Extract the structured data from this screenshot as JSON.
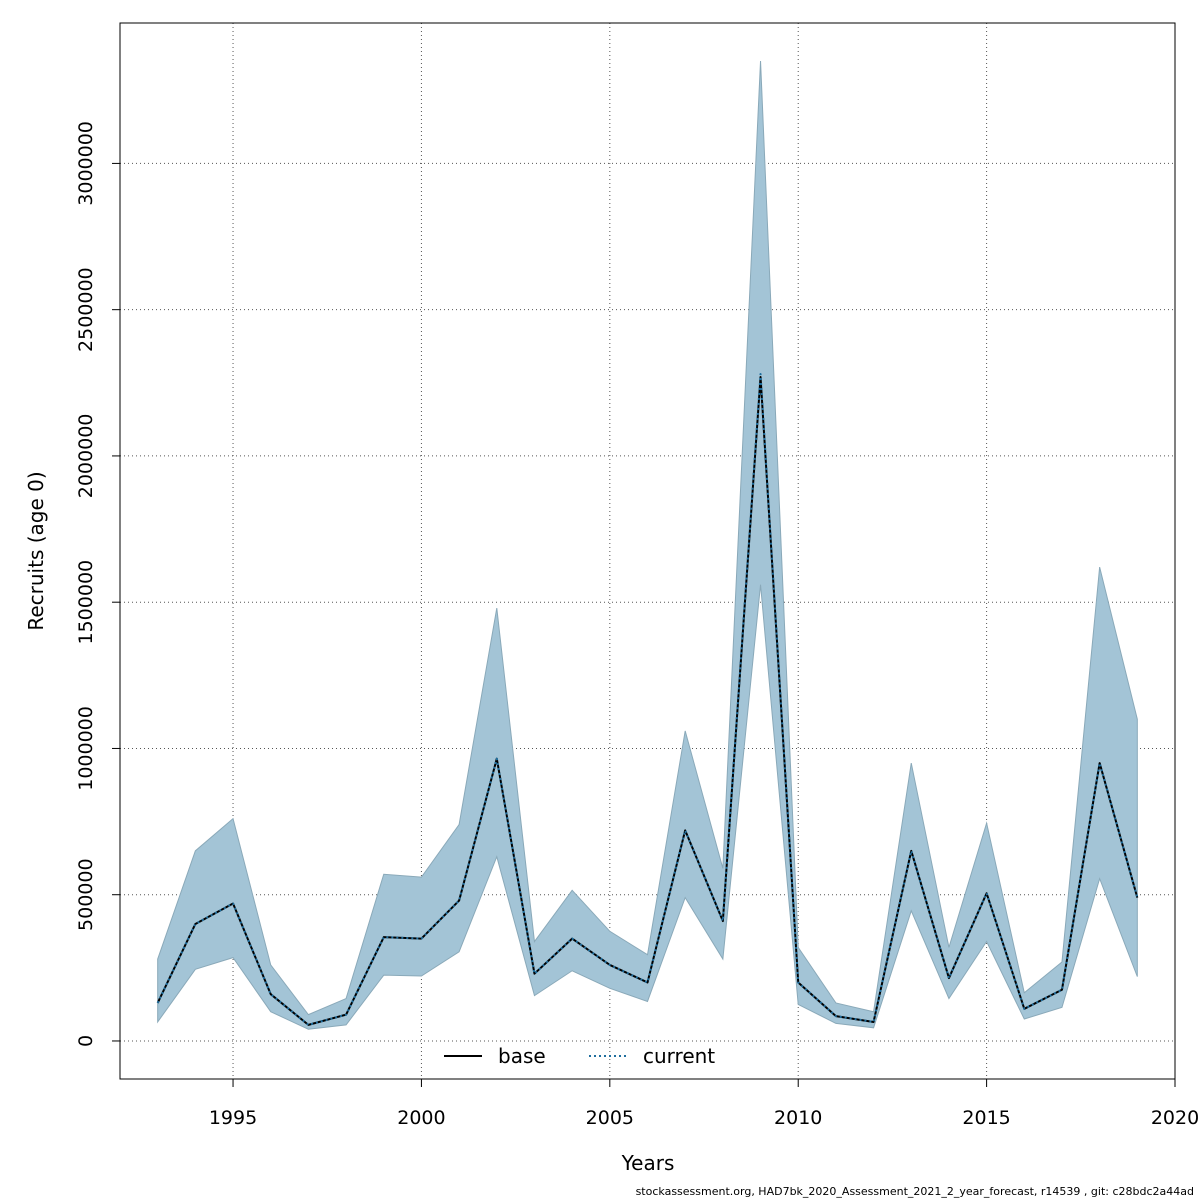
{
  "chart_data": {
    "type": "area",
    "title": "",
    "xlabel": "Years",
    "ylabel": "Recruits (age 0)",
    "xlim": [
      1992,
      2020
    ],
    "ylim": [
      -130000,
      3480000
    ],
    "x_ticks": [
      1995,
      2000,
      2005,
      2010,
      2015,
      2020
    ],
    "y_ticks": [
      0,
      500000,
      1000000,
      1500000,
      2000000,
      2500000,
      3000000
    ],
    "x_tick_labels": [
      "1995",
      "2000",
      "2005",
      "2010",
      "2015",
      "2020"
    ],
    "y_tick_labels": [
      "0",
      "500000",
      "1000000",
      "1500000",
      "2000000",
      "2500000",
      "3000000"
    ],
    "grid": true,
    "legend_position": "bottom-center",
    "x": [
      1993,
      1994,
      1995,
      1996,
      1997,
      1998,
      1999,
      2000,
      2001,
      2002,
      2003,
      2004,
      2005,
      2006,
      2007,
      2008,
      2009,
      2010,
      2011,
      2012,
      2013,
      2014,
      2015,
      2016,
      2017,
      2018,
      2019
    ],
    "band": {
      "color": "#a3c4d6",
      "lower": [
        65000,
        245000,
        285000,
        100000,
        40000,
        55000,
        225000,
        222000,
        305000,
        630000,
        155000,
        240000,
        180000,
        135000,
        490000,
        280000,
        1560000,
        125000,
        60000,
        45000,
        445000,
        145000,
        340000,
        75000,
        115000,
        555000,
        220000
      ],
      "upper": [
        280000,
        650000,
        760000,
        260000,
        90000,
        145000,
        570000,
        560000,
        740000,
        1480000,
        340000,
        515000,
        375000,
        295000,
        1060000,
        590000,
        3350000,
        320000,
        130000,
        100000,
        950000,
        320000,
        745000,
        165000,
        270000,
        1620000,
        1100000
      ]
    },
    "series": [
      {
        "name": "base",
        "color": "#000000",
        "dash": "solid",
        "values": [
          130000,
          400000,
          470000,
          160000,
          55000,
          90000,
          355000,
          350000,
          480000,
          965000,
          230000,
          350000,
          260000,
          200000,
          720000,
          410000,
          2270000,
          200000,
          85000,
          65000,
          650000,
          215000,
          505000,
          110000,
          175000,
          950000,
          490000
        ]
      },
      {
        "name": "current",
        "color": "#1f6e9e",
        "dash": "dotted",
        "values": [
          130000,
          400000,
          470000,
          160000,
          55000,
          90000,
          355000,
          350000,
          480000,
          965000,
          230000,
          350000,
          260000,
          200000,
          720000,
          410000,
          2280000,
          200000,
          85000,
          65000,
          650000,
          215000,
          505000,
          110000,
          175000,
          950000,
          490000
        ]
      }
    ]
  },
  "footer": "stockassessment.org, HAD7bk_2020_Assessment_2021_2_year_forecast, r14539 , git: c28bdc2a44ad"
}
